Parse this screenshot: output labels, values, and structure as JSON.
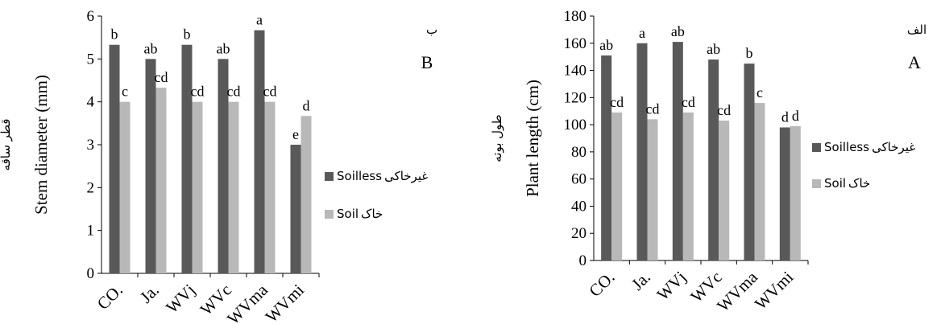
{
  "chart_data": [
    {
      "type": "bar",
      "panel_letter": "B",
      "panel_letter_fa": "ب",
      "ylabel": "Stem diameter (mm)",
      "ylabel_fa": "قطر ساقه",
      "ylim": [
        0,
        6
      ],
      "yticks": [
        0,
        1,
        2,
        3,
        4,
        5,
        6
      ],
      "categories": [
        "CO.",
        "Ja.",
        "WVj",
        "WVc",
        "WVma",
        "WVmi"
      ],
      "series": [
        {
          "name": "Soilless",
          "name_fa": "غیرخاکی",
          "color": "#595959",
          "values": [
            5.33,
            5.0,
            5.33,
            5.0,
            5.67,
            3.0
          ],
          "labels": [
            "b",
            "ab",
            "b",
            "ab",
            "a",
            "e"
          ]
        },
        {
          "name": "Soil",
          "name_fa": "خاک",
          "color": "#b8b8b8",
          "values": [
            4.0,
            4.33,
            4.0,
            4.0,
            4.0,
            3.67
          ],
          "labels": [
            "c",
            "cd",
            "cd",
            "cd",
            "cd",
            "d"
          ]
        }
      ],
      "legend_position": "right"
    },
    {
      "type": "bar",
      "panel_letter": "A",
      "panel_letter_fa": "الف",
      "ylabel": "Plant length (cm)",
      "ylabel_fa": "طول بوته",
      "ylim": [
        0,
        180
      ],
      "yticks": [
        0,
        20,
        40,
        60,
        80,
        100,
        120,
        140,
        160,
        180
      ],
      "categories": [
        "CO.",
        "Ja.",
        "WVj",
        "WVc",
        "WVma",
        "WVmi"
      ],
      "series": [
        {
          "name": "Soilless",
          "name_fa": "غیرخاکی",
          "color": "#595959",
          "values": [
            151,
            160,
            161,
            148,
            145,
            98
          ],
          "labels": [
            "ab",
            "a",
            "ab",
            "ab",
            "b",
            "d"
          ]
        },
        {
          "name": "Soil",
          "name_fa": "خاک",
          "color": "#b8b8b8",
          "values": [
            109,
            104,
            109,
            103,
            116,
            99
          ],
          "labels": [
            "cd",
            "cd",
            "cd",
            "cd",
            "c",
            "d"
          ]
        }
      ],
      "legend_position": "right"
    }
  ]
}
